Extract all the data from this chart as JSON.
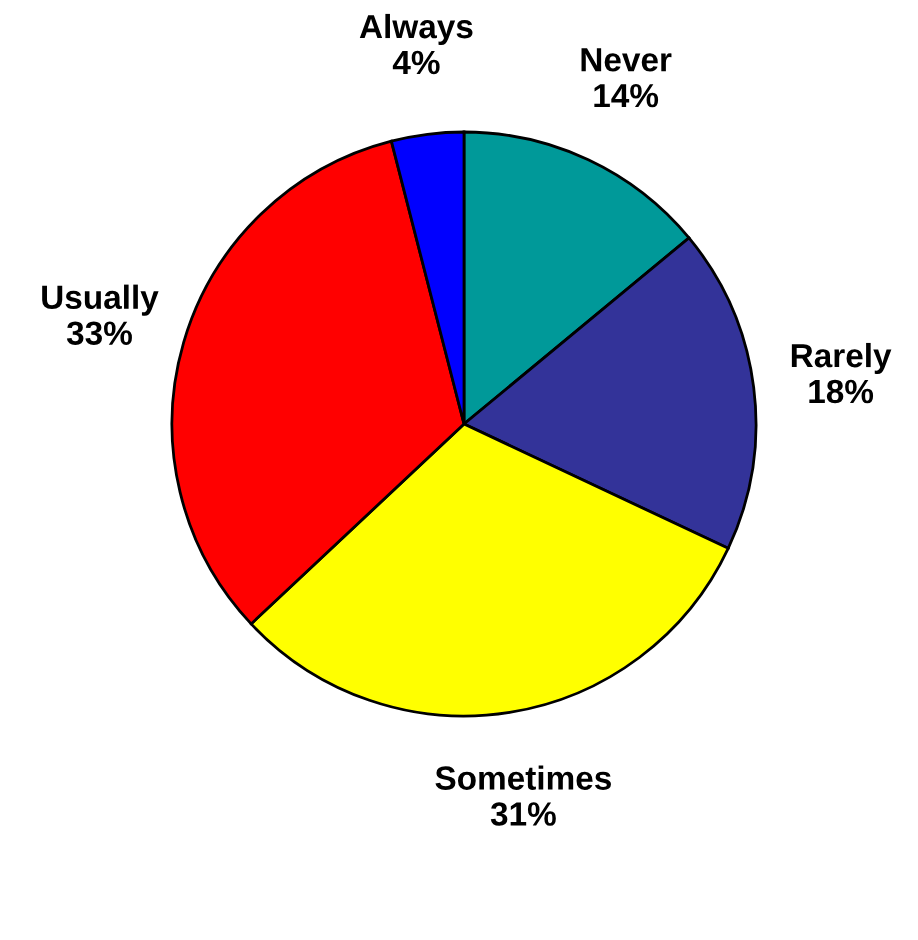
{
  "chart_data": {
    "type": "pie",
    "categories": [
      "Never",
      "Rarely",
      "Sometimes",
      "Usually",
      "Always"
    ],
    "values": [
      14,
      18,
      31,
      33,
      4
    ],
    "value_labels": [
      "14%",
      "18%",
      "31%",
      "33%",
      "4%"
    ],
    "colors": [
      "#009999",
      "#333399",
      "#ffff00",
      "#ff0000",
      "#0000ff"
    ]
  }
}
